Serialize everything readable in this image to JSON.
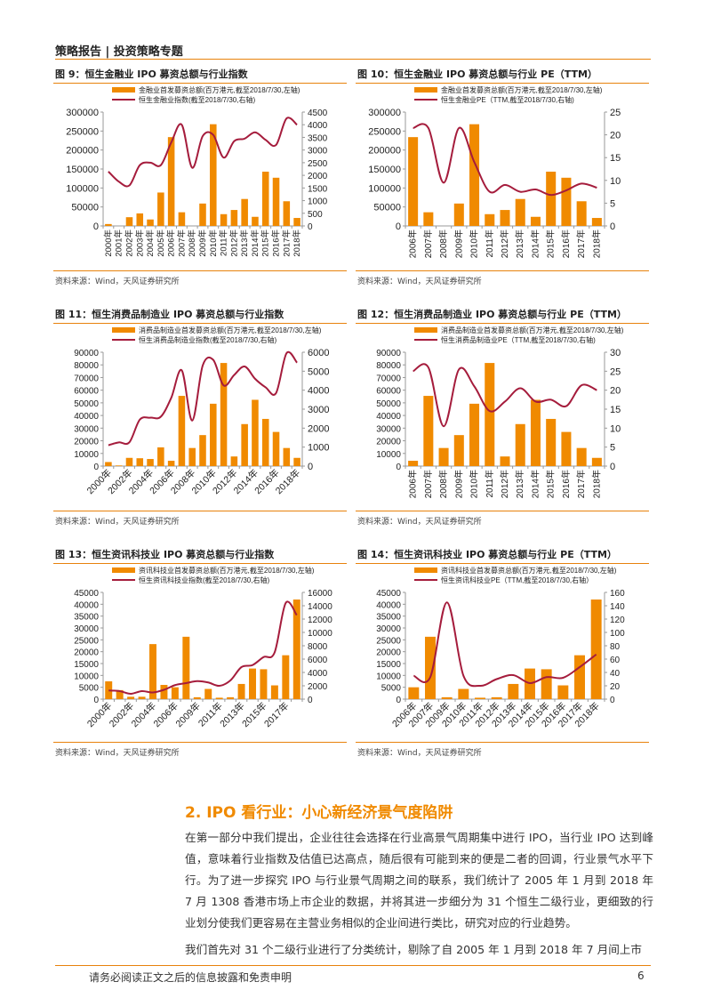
{
  "header": {
    "title": "策略报告 | 投资策略专题"
  },
  "colors": {
    "accent": "#e8820c",
    "bar": "#f08a00",
    "line": "#a51c3c"
  },
  "source_label": "资料来源：Wind，天风证券研究所",
  "chart_data": [
    {
      "type": "bar+line",
      "title": "图 9：恒生金融业 IPO 募资总额与行业指数",
      "x_label_orientation": "vertical",
      "categories": [
        "2000年",
        "2001年",
        "2002年",
        "2003年",
        "2004年",
        "2005年",
        "2006年",
        "2007年",
        "2008年",
        "2009年",
        "2010年",
        "2011年",
        "2012年",
        "2013年",
        "2014年",
        "2015年",
        "2016年",
        "2017年",
        "2018年"
      ],
      "x_tick_labels": [
        "2000年",
        "2001年",
        "2002年",
        "2003年",
        "2004年",
        "2005年",
        "2006年",
        "2007年",
        "2008年",
        "2009年",
        "2010年",
        "2011年",
        "2012年",
        "2013年",
        "2014年",
        "2015年",
        "2016年",
        "2017年",
        "2018年"
      ],
      "series": [
        {
          "name": "金融业首发募资总额(百万港元,截至2018/7/30,左轴)",
          "type": "bar",
          "axis": "left",
          "values": [
            5000,
            0,
            23000,
            33000,
            17000,
            88000,
            234000,
            36000,
            0,
            59000,
            268000,
            31000,
            42000,
            71000,
            24000,
            143000,
            127000,
            65000,
            21000
          ]
        },
        {
          "name": "恒生金融业指数(截至2018/7/30,右轴)",
          "type": "line",
          "axis": "right",
          "values": [
            2150,
            1750,
            1600,
            2400,
            2500,
            2400,
            3300,
            4000,
            2300,
            3550,
            3600,
            2700,
            3350,
            3450,
            3700,
            3400,
            3200,
            4250,
            4000
          ]
        }
      ],
      "ylim_left": [
        0,
        300000
      ],
      "yticks_left": [
        0,
        50000,
        100000,
        150000,
        200000,
        250000,
        300000
      ],
      "ylim_right": [
        0,
        4500
      ],
      "yticks_right": [
        0,
        500,
        1000,
        1500,
        2000,
        2500,
        3000,
        3500,
        4000,
        4500
      ],
      "legend": "top"
    },
    {
      "type": "bar+line",
      "title": "图 10：恒生金融业 IPO 募资总额与行业 PE（TTM）",
      "x_label_orientation": "vertical",
      "categories": [
        "2006年",
        "2007年",
        "2008年",
        "2009年",
        "2010年",
        "2011年",
        "2012年",
        "2013年",
        "2014年",
        "2015年",
        "2016年",
        "2017年",
        "2018年"
      ],
      "x_tick_labels": [
        "2006年",
        "2007年",
        "2008年",
        "2009年",
        "2010年",
        "2011年",
        "2012年",
        "2013年",
        "2014年",
        "2015年",
        "2016年",
        "2017年",
        "2018年"
      ],
      "series": [
        {
          "name": "金融业首发募资总额(百万港元,截至2018/7/30,左轴)",
          "type": "bar",
          "axis": "left",
          "values": [
            234000,
            36000,
            0,
            59000,
            268000,
            31000,
            42000,
            71000,
            24000,
            143000,
            127000,
            65000,
            21000
          ]
        },
        {
          "name": "恒生金融业PE（TTM,截至2018/7/30,右轴)",
          "type": "line",
          "axis": "right",
          "values": [
            21.5,
            21.5,
            9.5,
            21.5,
            14,
            7.5,
            9,
            7.5,
            8,
            6.8,
            7.8,
            9.3,
            8.4
          ]
        }
      ],
      "ylim_left": [
        0,
        300000
      ],
      "yticks_left": [
        0,
        50000,
        100000,
        150000,
        200000,
        250000,
        300000
      ],
      "ylim_right": [
        0,
        25
      ],
      "yticks_right": [
        0,
        5,
        10,
        15,
        20,
        25
      ],
      "legend": "top"
    },
    {
      "type": "bar+line",
      "title": "图 11：恒生消费品制造业 IPO 募资总额与行业指数",
      "x_label_orientation": "diagonal",
      "categories": [
        "2000年",
        "2001年",
        "2002年",
        "2003年",
        "2004年",
        "2005年",
        "2006年",
        "2007年",
        "2008年",
        "2009年",
        "2010年",
        "2011年",
        "2012年",
        "2013年",
        "2014年",
        "2015年",
        "2016年",
        "2017年",
        "2018年"
      ],
      "x_tick_labels": [
        "2000年",
        "",
        "2002年",
        "",
        "2004年",
        "",
        "2006年",
        "",
        "2008年",
        "",
        "2010年",
        "",
        "2012年",
        "",
        "2014年",
        "",
        "2016年",
        "",
        "2018年"
      ],
      "series": [
        {
          "name": "消费品制造业首发募资总额(百万港元,截至2018/7/30,左轴)",
          "type": "bar",
          "axis": "left",
          "values": [
            3200,
            500,
            6500,
            6200,
            5600,
            14800,
            4200,
            55500,
            14300,
            24500,
            49300,
            81500,
            7600,
            33200,
            52400,
            37300,
            27000,
            14300,
            6500
          ]
        },
        {
          "name": "恒生消费品制造业指数(截至2018/7/30,右轴)",
          "type": "line",
          "axis": "right",
          "values": [
            1100,
            1250,
            1250,
            2450,
            2550,
            2600,
            3600,
            5050,
            2400,
            5300,
            5600,
            4250,
            4800,
            5250,
            4600,
            4150,
            3850,
            5950,
            5450
          ]
        }
      ],
      "ylim_left": [
        0,
        90000
      ],
      "yticks_left": [
        0,
        10000,
        20000,
        30000,
        40000,
        50000,
        60000,
        70000,
        80000,
        90000
      ],
      "ylim_right": [
        0,
        6000
      ],
      "yticks_right": [
        0,
        1000,
        2000,
        3000,
        4000,
        5000,
        6000
      ],
      "legend": "top"
    },
    {
      "type": "bar+line",
      "title": "图 12：恒生消费品制造业 IPO 募资总额与行业 PE（TTM）",
      "x_label_orientation": "vertical",
      "categories": [
        "2006年",
        "2007年",
        "2008年",
        "2009年",
        "2010年",
        "2011年",
        "2012年",
        "2013年",
        "2014年",
        "2015年",
        "2016年",
        "2017年",
        "2018年"
      ],
      "x_tick_labels": [
        "2006年",
        "2007年",
        "2008年",
        "2009年",
        "2010年",
        "2011年",
        "2012年",
        "2013年",
        "2014年",
        "2015年",
        "2016年",
        "2017年",
        "2018年"
      ],
      "series": [
        {
          "name": "消费品制造业首发募资总额(百万港元,截至2018/7/30,左轴)",
          "type": "bar",
          "axis": "left",
          "values": [
            4200,
            55500,
            14300,
            24500,
            49300,
            81500,
            7600,
            33200,
            52400,
            37300,
            27000,
            14300,
            6500
          ]
        },
        {
          "name": "恒生消费品制造业PE（TTM,截至2018/7/30,右轴)",
          "type": "line",
          "axis": "right",
          "values": [
            25,
            26,
            10.5,
            25.5,
            21,
            14.5,
            17,
            20.5,
            17,
            17.5,
            15.8,
            21.3,
            20
          ]
        }
      ],
      "ylim_left": [
        0,
        90000
      ],
      "yticks_left": [
        0,
        10000,
        20000,
        30000,
        40000,
        50000,
        60000,
        70000,
        80000,
        90000
      ],
      "ylim_right": [
        0,
        30
      ],
      "yticks_right": [
        0,
        5,
        10,
        15,
        20,
        25,
        30
      ],
      "legend": "top"
    },
    {
      "type": "bar+line",
      "title": "图 13：恒生资讯科技业 IPO 募资总额与行业指数",
      "x_label_orientation": "diagonal",
      "categories": [
        "2000年",
        "2001年",
        "2002年",
        "2003年",
        "2004年",
        "2005年",
        "2006年",
        "2007年",
        "2009年",
        "2010年",
        "2011年",
        "2012年",
        "2013年",
        "2014年",
        "2015年",
        "2016年",
        "2017年",
        "2018年"
      ],
      "x_tick_labels": [
        "2000年",
        "",
        "2002年",
        "",
        "2004年",
        "",
        "2006年",
        "",
        "2009年",
        "",
        "2011年",
        "",
        "2013年",
        "",
        "2015年",
        "",
        "2017年",
        ""
      ],
      "series": [
        {
          "name": "资讯科技业首发募资总额(百万港元,截至2018/7/30,左轴)",
          "type": "bar",
          "axis": "left",
          "values": [
            7500,
            3800,
            1000,
            1000,
            23200,
            6000,
            5000,
            26300,
            800,
            4300,
            600,
            800,
            6400,
            12900,
            12600,
            5800,
            18500,
            42000
          ]
        },
        {
          "name": "恒生资讯科技业指数(截至2018/7/30,右轴)",
          "type": "line",
          "axis": "right",
          "values": [
            1300,
            1200,
            800,
            1200,
            1000,
            1400,
            2100,
            2400,
            2700,
            2500,
            2000,
            2800,
            4800,
            5100,
            6300,
            7000,
            14400,
            12600
          ]
        }
      ],
      "ylim_left": [
        0,
        45000
      ],
      "yticks_left": [
        0,
        5000,
        10000,
        15000,
        20000,
        25000,
        30000,
        35000,
        40000,
        45000
      ],
      "ylim_right": [
        0,
        16000
      ],
      "yticks_right": [
        0,
        2000,
        4000,
        6000,
        8000,
        10000,
        12000,
        14000,
        16000
      ],
      "legend": "top"
    },
    {
      "type": "bar+line",
      "title": "图 14：恒生资讯科技业 IPO 募资总额与行业 PE（TTM）",
      "x_label_orientation": "diagonal",
      "categories": [
        "2006年",
        "2007年",
        "2009年",
        "2010年",
        "2011年",
        "2012年",
        "2013年",
        "2014年",
        "2015年",
        "2016年",
        "2017年",
        "2018年"
      ],
      "x_tick_labels": [
        "2006年",
        "2007年",
        "2009年",
        "2010年",
        "2011年",
        "2012年",
        "2013年",
        "2014年",
        "2015年",
        "2016年",
        "2017年",
        "2018年"
      ],
      "series": [
        {
          "name": "资讯科技业首发募资总额(百万港元,截至2018/7/30,左轴)",
          "type": "bar",
          "axis": "left",
          "values": [
            5000,
            26300,
            800,
            4300,
            600,
            800,
            6400,
            12900,
            12600,
            5800,
            18500,
            42000
          ]
        },
        {
          "name": "恒生资讯科技业PE（TTM,截至2018/7/30,右轴）",
          "type": "line",
          "axis": "right",
          "values": [
            35,
            33,
            145,
            35,
            20,
            30,
            36,
            24,
            33,
            32,
            48,
            67
          ]
        }
      ],
      "ylim_left": [
        0,
        45000
      ],
      "yticks_left": [
        0,
        5000,
        10000,
        15000,
        20000,
        25000,
        30000,
        35000,
        40000,
        45000
      ],
      "ylim_right": [
        0,
        160
      ],
      "yticks_right": [
        0,
        20,
        40,
        60,
        80,
        100,
        120,
        140,
        160
      ],
      "legend": "top"
    }
  ],
  "section": {
    "title": "2. IPO 看行业：小心新经济景气度陷阱"
  },
  "paragraphs": [
    "在第一部分中我们提出，企业往往会选择在行业高景气周期集中进行 IPO，当行业 IPO 达到峰值，意味着行业指数及估值已达高点，随后很有可能到来的便是二者的回调，行业景气水平下行。为了进一步探究 IPO 与行业景气周期之间的联系，我们统计了 2005 年 1 月到 2018 年 7 月 1308 香港市场上市企业的数据，并将其进一步细分为 31 个恒生二级行业，更细致的行业划分使我们更容易在主营业务相似的企业间进行类比，研究对应的行业趋势。",
    "我们首先对 31 个二级行业进行了分类统计，剔除了自 2005 年 1 月到 2018 年 7 月间上市"
  ],
  "footer": {
    "disclaimer": "请务必阅读正文之后的信息披露和免责申明",
    "page": "6"
  }
}
